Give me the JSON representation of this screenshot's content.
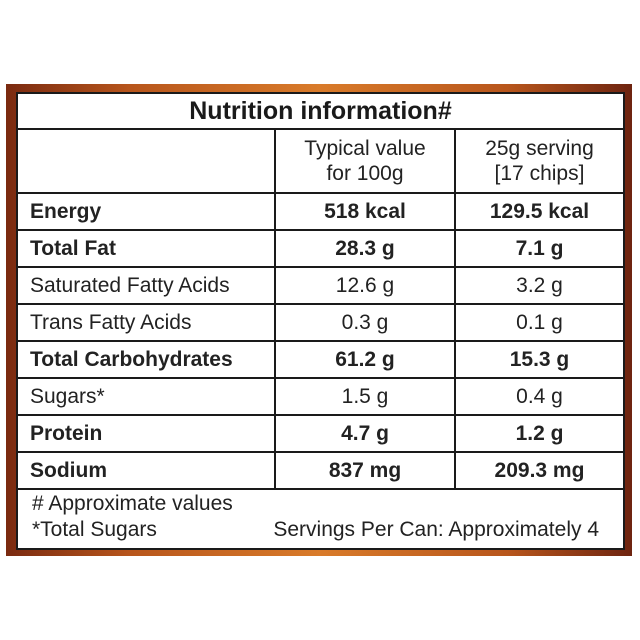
{
  "title": "Nutrition information#",
  "headers": {
    "col1": "",
    "col2_line1": "Typical value",
    "col2_line2": "for 100g",
    "col3_line1": "25g serving",
    "col3_line2": "[17 chips]"
  },
  "rows": [
    {
      "label": "Energy",
      "per100": "518 kcal",
      "serving": "129.5 kcal",
      "bold": true
    },
    {
      "label": "Total Fat",
      "per100": "28.3 g",
      "serving": "7.1 g",
      "bold": true
    },
    {
      "label": "Saturated Fatty Acids",
      "per100": "12.6 g",
      "serving": "3.2 g",
      "bold": false
    },
    {
      "label": "Trans Fatty Acids",
      "per100": "0.3 g",
      "serving": "0.1 g",
      "bold": false
    },
    {
      "label": "Total Carbohydrates",
      "per100": "61.2 g",
      "serving": "15.3 g",
      "bold": true
    },
    {
      "label": "Sugars*",
      "per100": "1.5 g",
      "serving": "0.4 g",
      "bold": false
    },
    {
      "label": "Protein",
      "per100": "4.7 g",
      "serving": "1.2 g",
      "bold": true
    },
    {
      "label": "Sodium",
      "per100": "837 mg",
      "serving": "209.3 mg",
      "bold": true
    }
  ],
  "footnotes": {
    "approx": "# Approximate values",
    "sugars": "*Total Sugars",
    "servings": "Servings Per Can: Approximately 4"
  }
}
